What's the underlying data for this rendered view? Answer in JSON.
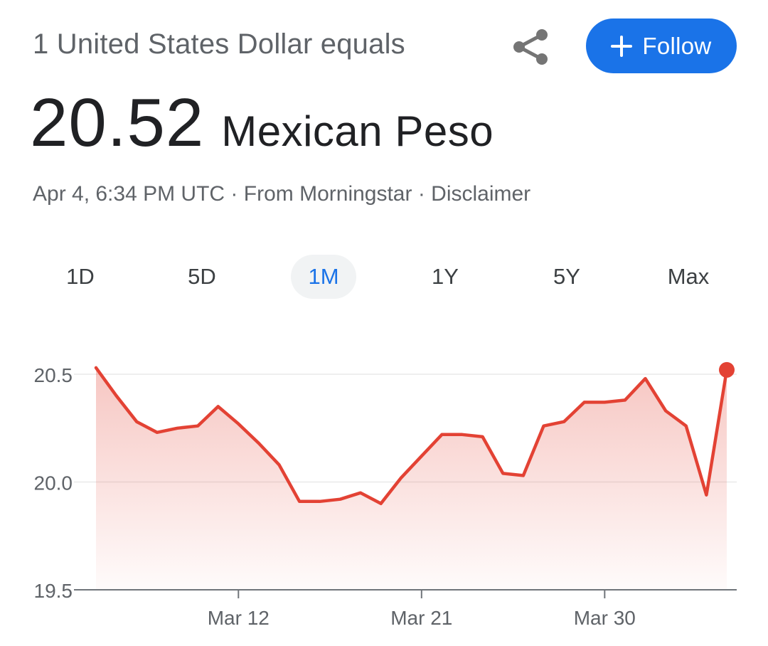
{
  "header": {
    "intro": "1 United States Dollar equals",
    "follow_label": "Follow"
  },
  "icons": {
    "share": "share-icon",
    "follow": "plus-icon"
  },
  "quote": {
    "value": "20.52",
    "currency": "Mexican Peso"
  },
  "meta": {
    "timestamp": "Apr 4, 6:34 PM UTC",
    "separator": " · ",
    "source": "From Morningstar",
    "disclaimer": "Disclaimer"
  },
  "tabs": [
    {
      "label": "1D",
      "active": false
    },
    {
      "label": "5D",
      "active": false
    },
    {
      "label": "1M",
      "active": true
    },
    {
      "label": "1Y",
      "active": false
    },
    {
      "label": "5Y",
      "active": false
    },
    {
      "label": "Max",
      "active": false
    }
  ],
  "colors": {
    "accent": "#1a73e8",
    "line": "#e34234",
    "fill": "#e34234",
    "muted_text": "#5f6368"
  },
  "chart_data": {
    "type": "area",
    "title": "",
    "xlabel": "",
    "ylabel": "",
    "ylim": [
      19.5,
      20.5
    ],
    "yticks": [
      "20.5",
      "20.0",
      "19.5"
    ],
    "ytick_values": [
      20.5,
      20.0,
      19.5
    ],
    "xticks": [
      "Mar 12",
      "Mar 21",
      "Mar 30"
    ],
    "xtick_values": [
      "2024-03-12",
      "2024-03-21",
      "2024-03-30"
    ],
    "grid": true,
    "x": [
      "2024-03-05",
      "2024-03-06",
      "2024-03-07",
      "2024-03-08",
      "2024-03-09",
      "2024-03-10",
      "2024-03-11",
      "2024-03-12",
      "2024-03-13",
      "2024-03-14",
      "2024-03-15",
      "2024-03-16",
      "2024-03-17",
      "2024-03-18",
      "2024-03-19",
      "2024-03-20",
      "2024-03-21",
      "2024-03-22",
      "2024-03-23",
      "2024-03-24",
      "2024-03-25",
      "2024-03-26",
      "2024-03-27",
      "2024-03-28",
      "2024-03-29",
      "2024-03-30",
      "2024-03-31",
      "2024-04-01",
      "2024-04-02",
      "2024-04-03",
      "2024-04-04",
      "2024-04-05"
    ],
    "series": [
      {
        "values": [
          20.53,
          20.4,
          20.28,
          20.23,
          20.25,
          20.26,
          20.35,
          20.27,
          20.18,
          20.08,
          19.91,
          19.91,
          19.92,
          19.95,
          19.9,
          20.02,
          20.12,
          20.22,
          20.22,
          20.21,
          20.04,
          20.03,
          20.26,
          20.28,
          20.37,
          20.37,
          20.38,
          20.48,
          20.33,
          20.26,
          19.94,
          20.52
        ]
      }
    ],
    "last_point_marker": true
  }
}
